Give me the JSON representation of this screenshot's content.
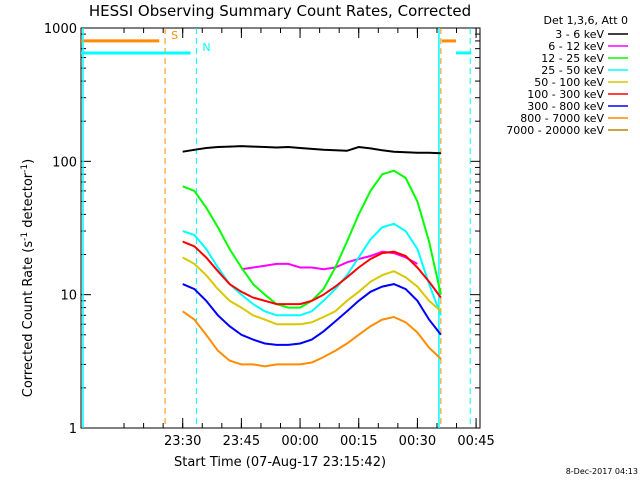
{
  "chart_data": {
    "type": "line",
    "title": "HESSI Observing Summary Count Rates, Corrected",
    "xlabel": "Start Time (07-Aug-17 23:15:42)",
    "ylabel_main": "Corrected Count Rate (s",
    "ylabel_sup1": "-1",
    "ylabel_mid": " detector",
    "ylabel_sup2": "-1",
    "ylabel_end": ")",
    "yscale": "log",
    "ylim": [
      1,
      1000
    ],
    "xlim_minutes": [
      -11,
      91
    ],
    "y_ticks": [
      {
        "value": 1000,
        "label": "1000"
      },
      {
        "value": 100,
        "label": "100"
      },
      {
        "value": 10,
        "label": "10"
      },
      {
        "value": 1,
        "label": "1"
      }
    ],
    "x_ticks": [
      {
        "value": 15,
        "label": "23:30"
      },
      {
        "value": 30,
        "label": "23:45"
      },
      {
        "value": 45,
        "label": "00:00"
      },
      {
        "value": 60,
        "label": "00:15"
      },
      {
        "value": 75,
        "label": "00:30"
      },
      {
        "value": 90,
        "label": "00:45"
      }
    ],
    "legend_header": "Det 1,3,6, Att 0",
    "series": [
      {
        "name": "3 - 6 keV",
        "color": "#000000",
        "x": [
          3,
          6,
          9,
          12,
          15,
          18,
          21,
          24,
          27,
          30,
          33,
          36,
          39,
          42,
          45,
          48,
          51,
          54,
          57,
          60,
          63,
          66,
          69,
          72,
          75,
          78,
          81,
          84,
          87
        ],
        "y": [
          null,
          null,
          null,
          null,
          118,
          122,
          126,
          128,
          129,
          130,
          129,
          128,
          127,
          128,
          126,
          124,
          122,
          121,
          120,
          128,
          125,
          121,
          118,
          117,
          116,
          116,
          115,
          null,
          null
        ]
      },
      {
        "name": "6 - 12 keV",
        "color": "#ff00ff",
        "x": [
          3,
          6,
          9,
          12,
          15,
          18,
          21,
          24,
          27,
          30,
          33,
          36,
          39,
          42,
          45,
          48,
          51,
          54,
          57,
          60,
          63,
          66,
          69,
          72,
          75,
          78,
          81,
          84,
          87
        ],
        "y": [
          null,
          null,
          null,
          null,
          null,
          null,
          null,
          null,
          null,
          15.5,
          16,
          16.5,
          17,
          17,
          16,
          16,
          15.5,
          16,
          17.5,
          18.5,
          19.5,
          21,
          20.5,
          19,
          17,
          null,
          null,
          null,
          null
        ]
      },
      {
        "name": "12 - 25 keV",
        "color": "#00ff00",
        "x": [
          3,
          6,
          9,
          12,
          15,
          18,
          21,
          24,
          27,
          30,
          33,
          36,
          39,
          42,
          45,
          48,
          51,
          54,
          57,
          60,
          63,
          66,
          69,
          72,
          75,
          78,
          81,
          84,
          87
        ],
        "y": [
          null,
          null,
          null,
          null,
          65,
          60,
          45,
          32,
          22,
          16,
          12,
          10,
          8.5,
          8,
          8,
          9,
          11,
          16,
          25,
          40,
          60,
          80,
          85,
          75,
          50,
          25,
          10,
          null,
          null
        ]
      },
      {
        "name": "25 - 50 keV",
        "color": "#00ffff",
        "x": [
          3,
          6,
          9,
          12,
          15,
          18,
          21,
          24,
          27,
          30,
          33,
          36,
          39,
          42,
          45,
          48,
          51,
          54,
          57,
          60,
          63,
          66,
          69,
          72,
          75,
          78,
          81,
          84,
          87
        ],
        "y": [
          null,
          null,
          null,
          null,
          30,
          28,
          22,
          16,
          12,
          10,
          8.5,
          7.5,
          7,
          7,
          7,
          7.5,
          9,
          11,
          14,
          19,
          26,
          32,
          34,
          30,
          22,
          12,
          7,
          null,
          null
        ]
      },
      {
        "name": "50 - 100 keV",
        "color": "#d8c800",
        "x": [
          3,
          6,
          9,
          12,
          15,
          18,
          21,
          24,
          27,
          30,
          33,
          36,
          39,
          42,
          45,
          48,
          51,
          54,
          57,
          60,
          63,
          66,
          69,
          72,
          75,
          78,
          81,
          84,
          87
        ],
        "y": [
          null,
          null,
          null,
          null,
          19,
          17,
          14,
          11,
          9,
          8,
          7,
          6.5,
          6,
          6,
          6,
          6.2,
          6.8,
          7.5,
          9,
          10.5,
          12.5,
          14,
          15,
          13.5,
          11.5,
          9,
          7.5,
          null,
          null
        ]
      },
      {
        "name": "100 - 300 keV",
        "color": "#ff0000",
        "x": [
          3,
          6,
          9,
          12,
          15,
          18,
          21,
          24,
          27,
          30,
          33,
          36,
          39,
          42,
          45,
          48,
          51,
          54,
          57,
          60,
          63,
          66,
          69,
          72,
          75,
          78,
          81,
          84,
          87
        ],
        "y": [
          null,
          null,
          null,
          null,
          25,
          23,
          19,
          15,
          12,
          10.5,
          9.5,
          9,
          8.5,
          8.5,
          8.5,
          9,
          10,
          11.5,
          13.5,
          16,
          18.5,
          20.5,
          21,
          19.5,
          16,
          12.5,
          9.5,
          null,
          null
        ]
      },
      {
        "name": "300 - 800 keV",
        "color": "#0000ff",
        "x": [
          3,
          6,
          9,
          12,
          15,
          18,
          21,
          24,
          27,
          30,
          33,
          36,
          39,
          42,
          45,
          48,
          51,
          54,
          57,
          60,
          63,
          66,
          69,
          72,
          75,
          78,
          81,
          84,
          87
        ],
        "y": [
          null,
          null,
          null,
          null,
          12,
          11,
          9,
          7,
          5.8,
          5,
          4.6,
          4.3,
          4.2,
          4.2,
          4.3,
          4.6,
          5.3,
          6.3,
          7.5,
          9,
          10.5,
          11.5,
          12,
          11,
          9,
          6.5,
          5,
          null,
          null
        ]
      },
      {
        "name": "800 - 7000 keV",
        "color": "#ff8c00",
        "x": [
          3,
          6,
          9,
          12,
          15,
          18,
          21,
          24,
          27,
          30,
          33,
          36,
          39,
          42,
          45,
          48,
          51,
          54,
          57,
          60,
          63,
          66,
          69,
          72,
          75,
          78,
          81,
          84,
          87
        ],
        "y": [
          null,
          null,
          null,
          null,
          7.5,
          6.5,
          5,
          3.8,
          3.2,
          3,
          3,
          2.9,
          3,
          3,
          3,
          3.1,
          3.4,
          3.8,
          4.3,
          5,
          5.8,
          6.5,
          6.8,
          6.2,
          5.2,
          4,
          3.3,
          null,
          null
        ]
      },
      {
        "name": "7000 - 20000 keV",
        "color": "#b8860b",
        "x": [],
        "y": []
      }
    ],
    "markers": [
      {
        "label": "S",
        "color": "#ff8c00",
        "x": 10.5,
        "x_end": 81,
        "level": 800
      },
      {
        "label": "N",
        "color": "#00ffff",
        "x": 18.5,
        "x_end": 88.5,
        "level": 650
      }
    ],
    "footer_date": "8-Dec-2017 04:13"
  }
}
